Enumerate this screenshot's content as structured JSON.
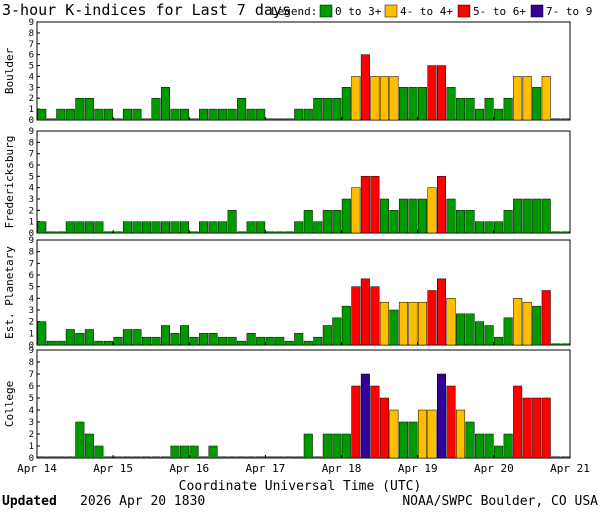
{
  "title": "3-hour K-indices for Last 7 days",
  "legend": {
    "label": "Legend:",
    "items": [
      {
        "label": "0 to 3+",
        "color": "#009900"
      },
      {
        "label": "4- to 4+",
        "color": "#ffbf00"
      },
      {
        "label": "5- to 6+",
        "color": "#ff0000"
      },
      {
        "label": "7- to 9",
        "color": "#330099"
      }
    ]
  },
  "footer": {
    "updated_label": "Updated",
    "updated_value": "2026 Apr 20 1830",
    "source": "NOAA/SWPC Boulder, CO USA"
  },
  "chart_data": {
    "type": "bar",
    "xlabel": "Coordinate Universal Time (UTC)",
    "x_tick_labels": [
      "Apr 14",
      "Apr 15",
      "Apr 16",
      "Apr 17",
      "Apr 18",
      "Apr 19",
      "Apr 20",
      "Apr 21"
    ],
    "y_ticks": [
      0,
      1,
      2,
      3,
      4,
      5,
      6,
      7,
      8,
      9
    ],
    "ylim": [
      0,
      9
    ],
    "bins_per_day": 8,
    "grid": false,
    "panels": [
      {
        "name": "Boulder",
        "values": [
          1,
          0,
          1,
          1,
          2,
          2,
          1,
          1,
          0,
          1,
          1,
          0,
          2,
          3,
          1,
          1,
          0,
          1,
          1,
          1,
          1,
          2,
          1,
          1,
          0,
          0,
          0,
          1,
          1,
          2,
          2,
          2,
          3,
          4,
          6,
          4,
          4,
          4,
          3,
          3,
          3,
          5,
          5,
          3,
          2,
          2,
          1,
          2,
          1,
          2,
          4,
          4,
          3,
          4,
          0,
          0
        ]
      },
      {
        "name": "Fredericksburg",
        "values": [
          1,
          0,
          0,
          1,
          1,
          1,
          1,
          0,
          0,
          1,
          1,
          1,
          1,
          1,
          1,
          1,
          0,
          1,
          1,
          1,
          2,
          0,
          1,
          1,
          0,
          0,
          0,
          1,
          2,
          1,
          2,
          2,
          3,
          4,
          5,
          5,
          3,
          2,
          3,
          3,
          3,
          4,
          5,
          3,
          2,
          2,
          1,
          1,
          1,
          2,
          3,
          3,
          3,
          3,
          0,
          0
        ]
      },
      {
        "name": "Est. Planetary",
        "values": [
          2,
          0.33,
          0.33,
          1.33,
          1,
          1.33,
          0.33,
          0.33,
          0.67,
          1.33,
          1.33,
          0.67,
          0.67,
          1.67,
          1,
          1.67,
          0.67,
          1,
          1,
          0.67,
          0.67,
          0.33,
          1,
          0.67,
          0.67,
          0.67,
          0.33,
          1,
          0.33,
          0.67,
          1.67,
          2.33,
          3.33,
          5,
          5.67,
          5,
          3.67,
          3,
          3.67,
          3.67,
          3.67,
          4.67,
          5.67,
          4,
          2.67,
          2.67,
          2,
          1.67,
          0.67,
          2.33,
          4,
          3.67,
          3.33,
          4.67,
          0,
          0
        ]
      },
      {
        "name": "College",
        "values": [
          0,
          0,
          0,
          0,
          3,
          2,
          1,
          0,
          0,
          0,
          0,
          0,
          0,
          0,
          1,
          1,
          1,
          0,
          1,
          0,
          0,
          0,
          0,
          0,
          0,
          0,
          0,
          0,
          2,
          0,
          2,
          2,
          2,
          6,
          7,
          6,
          5,
          4,
          3,
          3,
          4,
          4,
          7,
          6,
          4,
          3,
          2,
          2,
          1,
          2,
          6,
          5,
          5,
          5,
          0,
          0
        ]
      }
    ]
  }
}
